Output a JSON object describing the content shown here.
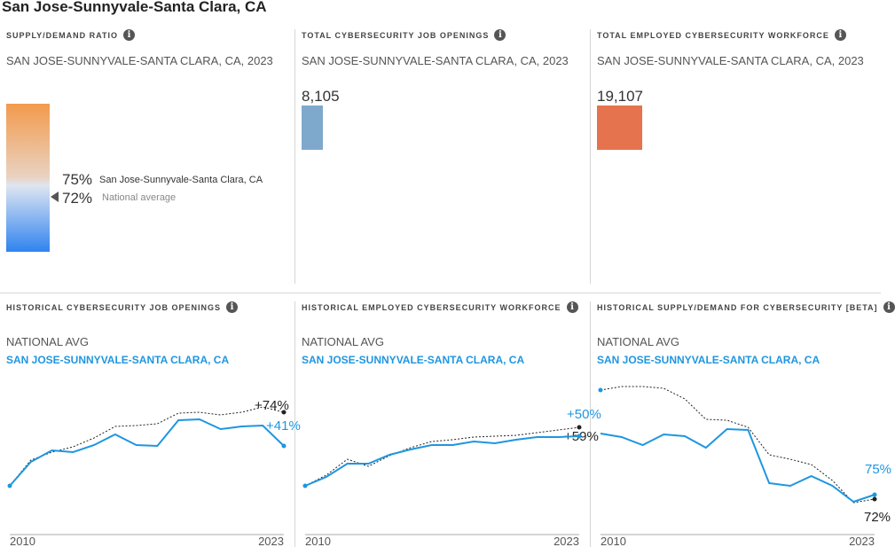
{
  "title": "San Jose-Sunnyvale-Santa Clara, CA",
  "top": [
    {
      "title": "SUPPLY/DEMAND RATIO",
      "subtitle": "SAN JOSE-SUNNYVALE-SANTA CLARA, CA, 2023",
      "local_value": "75%",
      "local_label": "San Jose-Sunnyvale-Santa Clara, CA",
      "national_value": "72%",
      "national_label": "National average"
    },
    {
      "title": "TOTAL CYBERSECURITY JOB OPENINGS",
      "subtitle": "SAN JOSE-SUNNYVALE-SANTA CLARA, CA, 2023",
      "value": "8,105",
      "color": "#7fa9cc"
    },
    {
      "title": "TOTAL EMPLOYED CYBERSECURITY WORKFORCE",
      "subtitle": "SAN JOSE-SUNNYVALE-SANTA CLARA, CA, 2023",
      "value": "19,107",
      "color": "#e5734d"
    }
  ],
  "legend": {
    "national": "NATIONAL AVG",
    "local": "SAN JOSE-SUNNYVALE-SANTA CLARA, CA"
  },
  "colors": {
    "local": "#1e96e0",
    "national": "#222222"
  },
  "chart_data": [
    {
      "type": "line",
      "title": "HISTORICAL CYBERSECURITY JOB OPENINGS",
      "x": [
        2010,
        2011,
        2012,
        2013,
        2014,
        2015,
        2016,
        2017,
        2018,
        2019,
        2020,
        2021,
        2022,
        2023
      ],
      "xlabels": [
        "2010",
        "2023"
      ],
      "series": [
        {
          "name": "SAN JOSE-SUNNYVALE-SANTA CLARA, CA",
          "values": [
            52,
            79,
            92,
            90,
            98,
            110,
            98,
            97,
            126,
            127,
            116,
            119,
            120,
            97
          ],
          "end_label": "+41%"
        },
        {
          "name": "NATIONAL AVG",
          "values": [
            52,
            81,
            90,
            96,
            106,
            119,
            120,
            122,
            134,
            135,
            132,
            135,
            141,
            135
          ],
          "end_label": "+74%"
        }
      ]
    },
    {
      "type": "line",
      "title": "HISTORICAL EMPLOYED CYBERSECURITY WORKFORCE",
      "x": [
        2010,
        2011,
        2012,
        2013,
        2014,
        2015,
        2016,
        2017,
        2018,
        2019,
        2020,
        2021,
        2022,
        2023
      ],
      "xlabels": [
        "2010",
        "2023"
      ],
      "series": [
        {
          "name": "SAN JOSE-SUNNYVALE-SANTA CLARA, CA",
          "values": [
            52,
            62,
            77,
            77,
            87,
            93,
            98,
            98,
            102,
            100,
            104,
            107,
            107,
            108
          ],
          "end_label": "+50%"
        },
        {
          "name": "NATIONAL AVG",
          "values": [
            52,
            64,
            82,
            74,
            86,
            95,
            102,
            104,
            107,
            108,
            109,
            112,
            115,
            118
          ],
          "end_label": "+59%"
        }
      ]
    },
    {
      "type": "line",
      "title": "HISTORICAL SUPPLY/DEMAND FOR CYBERSECURITY [BETA]",
      "x": [
        2010,
        2011,
        2012,
        2013,
        2014,
        2015,
        2016,
        2017,
        2018,
        2019,
        2020,
        2021,
        2022,
        2023
      ],
      "xlabels": [
        "2010",
        "2023"
      ],
      "series": [
        {
          "name": "SAN JOSE-SUNNYVALE-SANTA CLARA, CA",
          "values": [
            111,
            107,
            98,
            110,
            108,
            95,
            116,
            115,
            55,
            52,
            63,
            52,
            34,
            42
          ],
          "end_label": "75%"
        },
        {
          "name": "NATIONAL AVG",
          "values": [
            160,
            164,
            164,
            162,
            150,
            127,
            126,
            118,
            87,
            82,
            76,
            58,
            33,
            37
          ],
          "end_label": "72%"
        }
      ]
    }
  ]
}
